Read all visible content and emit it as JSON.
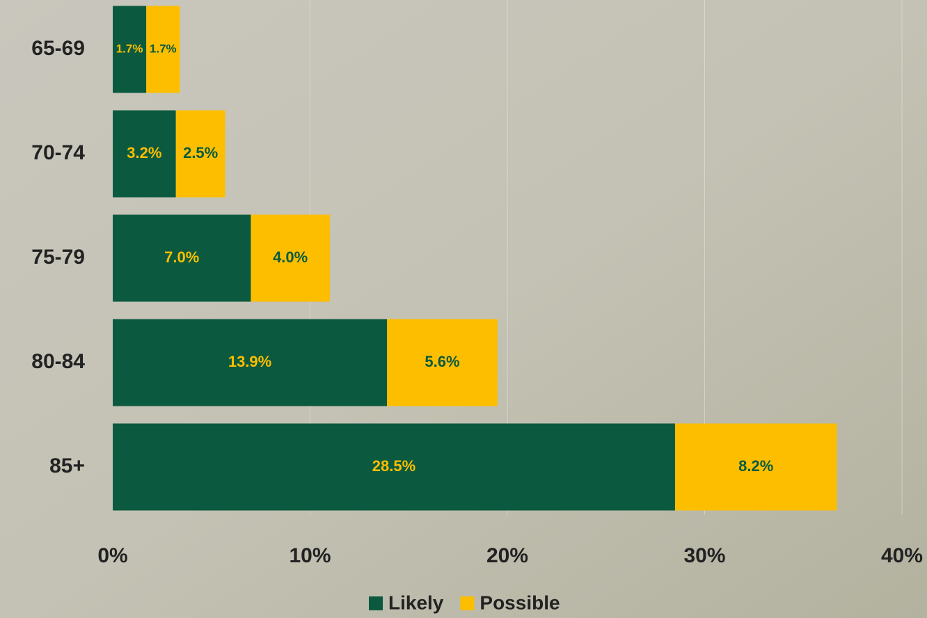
{
  "chart_data": {
    "type": "stacked_barh",
    "categories": [
      "65-69",
      "70-74",
      "75-79",
      "80-84",
      "85+"
    ],
    "series": [
      {
        "name": "Likely",
        "color": "#0b5a3f",
        "label_color": "#fdbe00",
        "values": [
          1.7,
          3.2,
          7.0,
          13.9,
          28.5
        ],
        "value_labels": [
          "1.7%",
          "3.2%",
          "7.0%",
          "13.9%",
          "28.5%"
        ]
      },
      {
        "name": "Possible",
        "color": "#fdbe00",
        "label_color": "#0b5a3f",
        "values": [
          1.7,
          2.5,
          4.0,
          5.6,
          8.2
        ],
        "value_labels": [
          "1.7%",
          "2.5%",
          "4.0%",
          "5.6%",
          "8.2%"
        ]
      }
    ],
    "xlim": [
      0,
      40
    ],
    "xticks": [
      {
        "value": 0,
        "label": "0%"
      },
      {
        "value": 10,
        "label": "10%"
      },
      {
        "value": 20,
        "label": "20%"
      },
      {
        "value": 30,
        "label": "30%"
      },
      {
        "value": 40,
        "label": "40%"
      }
    ],
    "grid": true
  }
}
